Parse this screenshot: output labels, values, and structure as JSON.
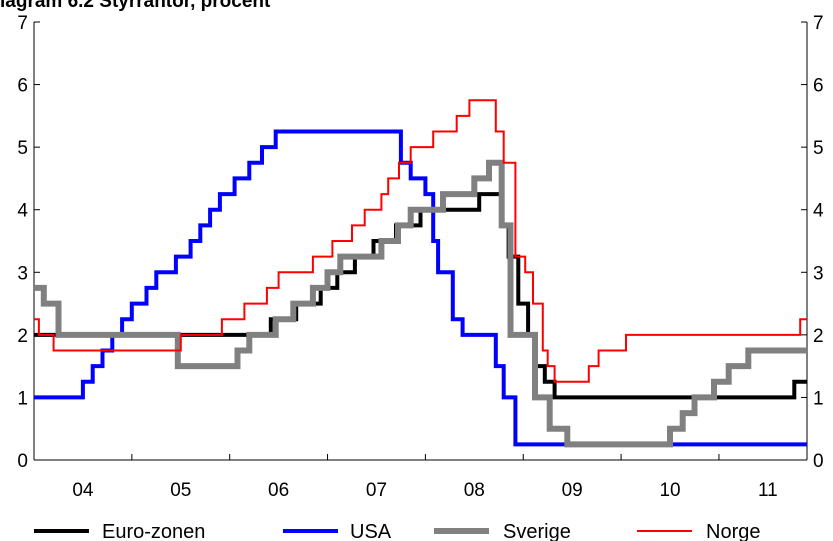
{
  "chart_data": {
    "type": "line",
    "title": "iagram 6.2 Styrräntor, procent",
    "xlabel": "",
    "ylabel": "",
    "xlim": [
      2003.5,
      2011.4
    ],
    "ylim": [
      0,
      7
    ],
    "yticks": [
      0,
      1,
      2,
      3,
      4,
      5,
      6,
      7
    ],
    "y_tick_labels": [
      "0",
      "1",
      "2",
      "3",
      "4",
      "5",
      "6",
      "7"
    ],
    "x_tick_labels": [
      "04",
      "05",
      "06",
      "07",
      "08",
      "09",
      "10",
      "11"
    ],
    "x_label_positions": [
      2004,
      2005,
      2006,
      2007,
      2008,
      2009,
      2010,
      2011
    ],
    "x_tick_positions": [
      2004.5,
      2005.5,
      2006.5,
      2007.5,
      2008.5,
      2009.5,
      2010.5
    ],
    "grid": false,
    "legend_position": "bottom",
    "series": [
      {
        "name": "Euro-zonen",
        "color": "#000000",
        "line_width": 4,
        "points": [
          [
            2003.5,
            2.0
          ],
          [
            2005.92,
            2.0
          ],
          [
            2005.92,
            2.25
          ],
          [
            2006.18,
            2.25
          ],
          [
            2006.18,
            2.5
          ],
          [
            2006.43,
            2.5
          ],
          [
            2006.43,
            2.75
          ],
          [
            2006.6,
            2.75
          ],
          [
            2006.6,
            3.0
          ],
          [
            2006.78,
            3.0
          ],
          [
            2006.78,
            3.25
          ],
          [
            2006.97,
            3.25
          ],
          [
            2006.97,
            3.5
          ],
          [
            2007.2,
            3.5
          ],
          [
            2007.2,
            3.75
          ],
          [
            2007.45,
            3.75
          ],
          [
            2007.45,
            4.0
          ],
          [
            2008.05,
            4.0
          ],
          [
            2008.05,
            4.25
          ],
          [
            2008.28,
            4.25
          ],
          [
            2008.28,
            3.75
          ],
          [
            2008.35,
            3.75
          ],
          [
            2008.35,
            3.25
          ],
          [
            2008.45,
            3.25
          ],
          [
            2008.45,
            2.5
          ],
          [
            2008.55,
            2.5
          ],
          [
            2008.55,
            2.0
          ],
          [
            2008.63,
            2.0
          ],
          [
            2008.63,
            1.5
          ],
          [
            2008.72,
            1.5
          ],
          [
            2008.72,
            1.25
          ],
          [
            2008.82,
            1.25
          ],
          [
            2008.82,
            1.0
          ],
          [
            2011.27,
            1.0
          ],
          [
            2011.27,
            1.25
          ],
          [
            2011.4,
            1.25
          ]
        ]
      },
      {
        "name": "USA",
        "color": "#0000ff",
        "line_width": 4,
        "points": [
          [
            2003.5,
            1.0
          ],
          [
            2004.0,
            1.0
          ],
          [
            2004.0,
            1.25
          ],
          [
            2004.1,
            1.25
          ],
          [
            2004.1,
            1.5
          ],
          [
            2004.2,
            1.5
          ],
          [
            2004.2,
            1.75
          ],
          [
            2004.3,
            1.75
          ],
          [
            2004.3,
            2.0
          ],
          [
            2004.4,
            2.0
          ],
          [
            2004.4,
            2.25
          ],
          [
            2004.5,
            2.25
          ],
          [
            2004.5,
            2.5
          ],
          [
            2004.65,
            2.5
          ],
          [
            2004.65,
            2.75
          ],
          [
            2004.75,
            2.75
          ],
          [
            2004.75,
            3.0
          ],
          [
            2004.95,
            3.0
          ],
          [
            2004.95,
            3.25
          ],
          [
            2005.1,
            3.25
          ],
          [
            2005.1,
            3.5
          ],
          [
            2005.2,
            3.5
          ],
          [
            2005.2,
            3.75
          ],
          [
            2005.3,
            3.75
          ],
          [
            2005.3,
            4.0
          ],
          [
            2005.4,
            4.0
          ],
          [
            2005.4,
            4.25
          ],
          [
            2005.55,
            4.25
          ],
          [
            2005.55,
            4.5
          ],
          [
            2005.7,
            4.5
          ],
          [
            2005.7,
            4.75
          ],
          [
            2005.83,
            4.75
          ],
          [
            2005.83,
            5.0
          ],
          [
            2005.97,
            5.0
          ],
          [
            2005.97,
            5.25
          ],
          [
            2007.25,
            5.25
          ],
          [
            2007.25,
            4.75
          ],
          [
            2007.35,
            4.75
          ],
          [
            2007.35,
            4.5
          ],
          [
            2007.5,
            4.5
          ],
          [
            2007.5,
            4.25
          ],
          [
            2007.58,
            4.25
          ],
          [
            2007.58,
            3.5
          ],
          [
            2007.63,
            3.5
          ],
          [
            2007.63,
            3.0
          ],
          [
            2007.78,
            3.0
          ],
          [
            2007.78,
            2.25
          ],
          [
            2007.88,
            2.25
          ],
          [
            2007.88,
            2.0
          ],
          [
            2008.22,
            2.0
          ],
          [
            2008.22,
            1.5
          ],
          [
            2008.3,
            1.5
          ],
          [
            2008.3,
            1.0
          ],
          [
            2008.42,
            1.0
          ],
          [
            2008.42,
            0.25
          ],
          [
            2011.4,
            0.25
          ]
        ]
      },
      {
        "name": "Sverige",
        "color": "#808080",
        "line_width": 6,
        "points": [
          [
            2003.5,
            2.75
          ],
          [
            2003.6,
            2.75
          ],
          [
            2003.6,
            2.5
          ],
          [
            2003.75,
            2.5
          ],
          [
            2003.75,
            2.0
          ],
          [
            2004.97,
            2.0
          ],
          [
            2004.97,
            1.5
          ],
          [
            2005.58,
            1.5
          ],
          [
            2005.58,
            1.75
          ],
          [
            2005.7,
            1.75
          ],
          [
            2005.7,
            2.0
          ],
          [
            2005.97,
            2.0
          ],
          [
            2005.97,
            2.25
          ],
          [
            2006.15,
            2.25
          ],
          [
            2006.15,
            2.5
          ],
          [
            2006.35,
            2.5
          ],
          [
            2006.35,
            2.75
          ],
          [
            2006.5,
            2.75
          ],
          [
            2006.5,
            3.0
          ],
          [
            2006.63,
            3.0
          ],
          [
            2006.63,
            3.25
          ],
          [
            2007.05,
            3.25
          ],
          [
            2007.05,
            3.5
          ],
          [
            2007.22,
            3.5
          ],
          [
            2007.22,
            3.75
          ],
          [
            2007.35,
            3.75
          ],
          [
            2007.35,
            4.0
          ],
          [
            2007.68,
            4.0
          ],
          [
            2007.68,
            4.25
          ],
          [
            2008.0,
            4.25
          ],
          [
            2008.0,
            4.5
          ],
          [
            2008.15,
            4.5
          ],
          [
            2008.15,
            4.75
          ],
          [
            2008.28,
            4.75
          ],
          [
            2008.28,
            3.75
          ],
          [
            2008.37,
            3.75
          ],
          [
            2008.37,
            2.0
          ],
          [
            2008.62,
            2.0
          ],
          [
            2008.62,
            1.0
          ],
          [
            2008.77,
            1.0
          ],
          [
            2008.77,
            0.5
          ],
          [
            2008.95,
            0.5
          ],
          [
            2008.95,
            0.25
          ],
          [
            2010.0,
            0.25
          ],
          [
            2010.0,
            0.5
          ],
          [
            2010.13,
            0.5
          ],
          [
            2010.13,
            0.75
          ],
          [
            2010.25,
            0.75
          ],
          [
            2010.25,
            1.0
          ],
          [
            2010.45,
            1.0
          ],
          [
            2010.45,
            1.25
          ],
          [
            2010.6,
            1.25
          ],
          [
            2010.6,
            1.5
          ],
          [
            2010.8,
            1.5
          ],
          [
            2010.8,
            1.75
          ],
          [
            2011.4,
            1.75
          ]
        ]
      },
      {
        "name": "Norge",
        "color": "#ff0000",
        "line_width": 2,
        "points": [
          [
            2003.5,
            2.25
          ],
          [
            2003.55,
            2.25
          ],
          [
            2003.55,
            2.0
          ],
          [
            2003.7,
            2.0
          ],
          [
            2003.7,
            1.75
          ],
          [
            2005.0,
            1.75
          ],
          [
            2005.0,
            2.0
          ],
          [
            2005.42,
            2.0
          ],
          [
            2005.42,
            2.25
          ],
          [
            2005.65,
            2.25
          ],
          [
            2005.65,
            2.5
          ],
          [
            2005.88,
            2.5
          ],
          [
            2005.88,
            2.75
          ],
          [
            2006.0,
            2.75
          ],
          [
            2006.0,
            3.0
          ],
          [
            2006.35,
            3.0
          ],
          [
            2006.35,
            3.25
          ],
          [
            2006.55,
            3.25
          ],
          [
            2006.55,
            3.5
          ],
          [
            2006.75,
            3.5
          ],
          [
            2006.75,
            3.75
          ],
          [
            2006.88,
            3.75
          ],
          [
            2006.88,
            4.0
          ],
          [
            2007.05,
            4.0
          ],
          [
            2007.05,
            4.25
          ],
          [
            2007.12,
            4.25
          ],
          [
            2007.12,
            4.5
          ],
          [
            2007.23,
            4.5
          ],
          [
            2007.23,
            4.75
          ],
          [
            2007.35,
            4.75
          ],
          [
            2007.35,
            5.0
          ],
          [
            2007.58,
            5.0
          ],
          [
            2007.58,
            5.25
          ],
          [
            2007.82,
            5.25
          ],
          [
            2007.82,
            5.5
          ],
          [
            2007.95,
            5.5
          ],
          [
            2007.95,
            5.75
          ],
          [
            2008.22,
            5.75
          ],
          [
            2008.22,
            5.25
          ],
          [
            2008.3,
            5.25
          ],
          [
            2008.3,
            4.75
          ],
          [
            2008.42,
            4.75
          ],
          [
            2008.42,
            3.25
          ],
          [
            2008.52,
            3.25
          ],
          [
            2008.52,
            3.0
          ],
          [
            2008.6,
            3.0
          ],
          [
            2008.6,
            2.5
          ],
          [
            2008.7,
            2.5
          ],
          [
            2008.7,
            1.75
          ],
          [
            2008.75,
            1.75
          ],
          [
            2008.75,
            1.5
          ],
          [
            2008.82,
            1.5
          ],
          [
            2008.82,
            1.25
          ],
          [
            2009.17,
            1.25
          ],
          [
            2009.17,
            1.5
          ],
          [
            2009.27,
            1.5
          ],
          [
            2009.27,
            1.75
          ],
          [
            2009.55,
            1.75
          ],
          [
            2009.55,
            2.0
          ],
          [
            2011.33,
            2.0
          ],
          [
            2011.33,
            2.25
          ],
          [
            2011.4,
            2.25
          ]
        ]
      }
    ]
  }
}
